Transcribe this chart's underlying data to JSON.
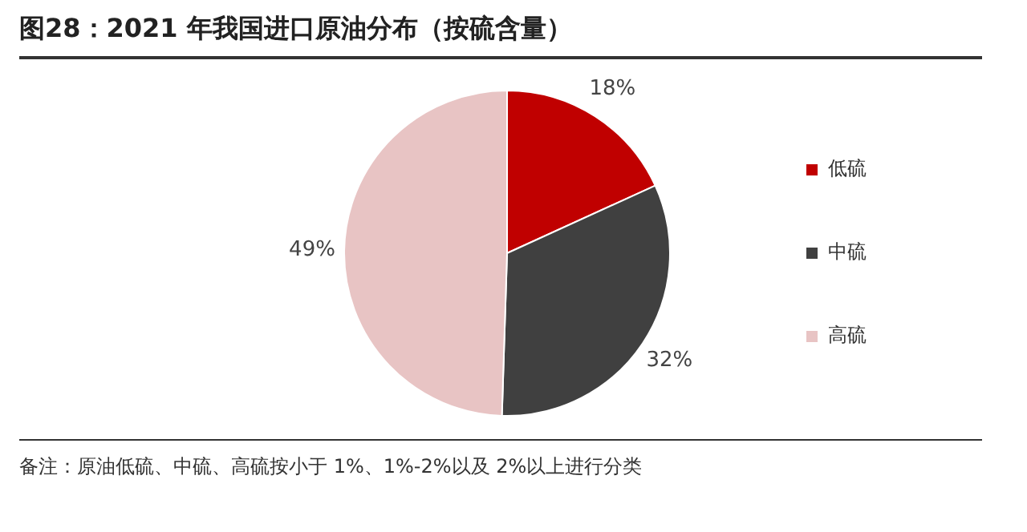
{
  "chart_data": {
    "type": "pie",
    "title": "图28：2021 年我国进口原油分布（按硫含量）",
    "categories": [
      "低硫",
      "中硫",
      "高硫"
    ],
    "values": [
      18,
      32,
      49
    ],
    "colors": [
      "#c00000",
      "#404040",
      "#e8c4c4"
    ],
    "value_labels": [
      "18%",
      "32%",
      "49%"
    ],
    "legend": "right",
    "annotations": [
      "备注：原油低硫、中硫、高硫按小于 1%、1%-2%以及 2%以上进行分类"
    ]
  }
}
